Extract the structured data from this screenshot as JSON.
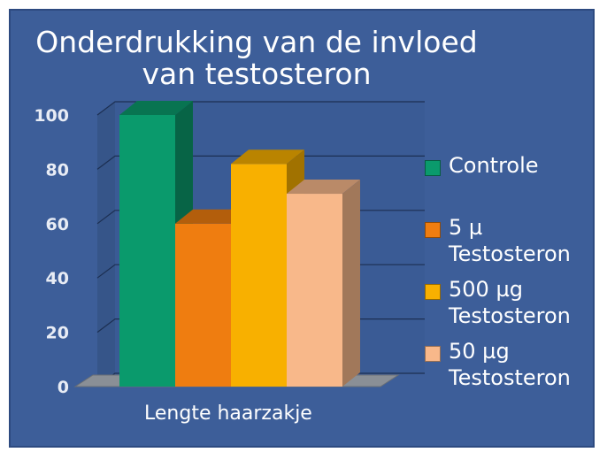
{
  "chart_data": {
    "type": "bar",
    "title_lines": [
      "Onderdrukking van de invloed",
      "van testosteron"
    ],
    "xlabel": "Lengte haarzakje",
    "ylabel": "",
    "ylim": [
      0,
      100
    ],
    "yticks": [
      "0",
      "20",
      "40",
      "60",
      "80",
      "100"
    ],
    "grid": true,
    "legend_position": "right",
    "categories": [
      "Lengte haarzakje"
    ],
    "series": [
      {
        "name": "Controle",
        "label_lines": [
          "Controle"
        ],
        "values": [
          100
        ],
        "color": "#0a9a6c"
      },
      {
        "name": "5 µ Testosteron",
        "label_lines": [
          "5 µ",
          "Testosteron"
        ],
        "values": [
          60
        ],
        "color": "#ef7d10"
      },
      {
        "name": "500 µg Testosteron",
        "label_lines": [
          "500 µg",
          "Testosteron"
        ],
        "values": [
          82
        ],
        "color": "#f8b000"
      },
      {
        "name": "50 µg Testosteron",
        "label_lines": [
          "50 µg",
          "Testosteron"
        ],
        "values": [
          71
        ],
        "color": "#f8b88a"
      }
    ]
  }
}
